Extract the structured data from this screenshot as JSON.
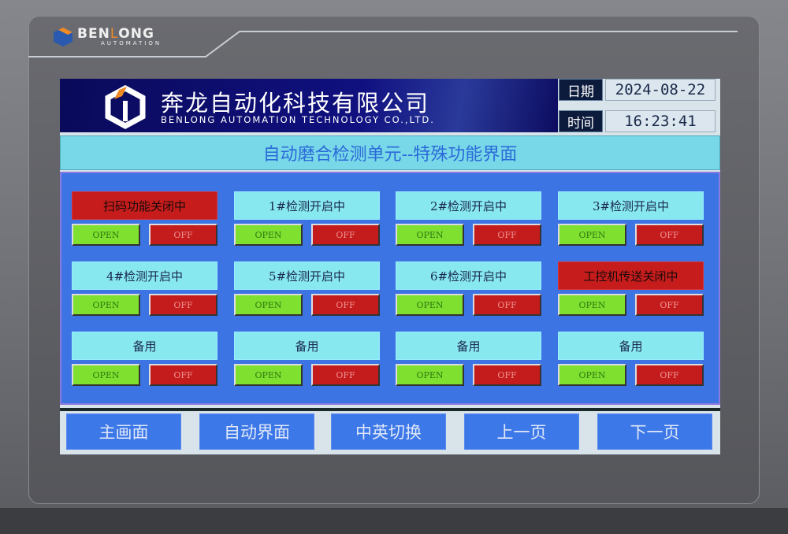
{
  "brand": {
    "name_a": "BEN",
    "name_b": "L",
    "name_c": "ONG",
    "sub": "AUTOMATION"
  },
  "header": {
    "company_cn": "奔龙自动化科技有限公司",
    "company_en": "BENLONG AUTOMATION TECHNOLOGY CO.,LTD."
  },
  "datetime": {
    "date_label": "日期",
    "date": "2024-08-22",
    "time_label": "时间",
    "time": "16:23:41"
  },
  "title": "自动磨合检测单元--特殊功能界面",
  "colors": {
    "on": "#80e030",
    "off": "#c41c1c",
    "label_active": "#88e8f0",
    "label_closed": "#c61c1c"
  },
  "controls": [
    {
      "label": "扫码功能关闭中",
      "state": "closed",
      "open": "OPEN",
      "off": "OFF"
    },
    {
      "label": "1#检测开启中",
      "state": "active",
      "open": "OPEN",
      "off": "OFF"
    },
    {
      "label": "2#检测开启中",
      "state": "active",
      "open": "OPEN",
      "off": "OFF"
    },
    {
      "label": "3#检测开启中",
      "state": "active",
      "open": "OPEN",
      "off": "OFF"
    },
    {
      "label": "4#检测开启中",
      "state": "active",
      "open": "OPEN",
      "off": "OFF"
    },
    {
      "label": "5#检测开启中",
      "state": "active",
      "open": "OPEN",
      "off": "OFF"
    },
    {
      "label": "6#检测开启中",
      "state": "active",
      "open": "OPEN",
      "off": "OFF"
    },
    {
      "label": "工控机传送关闭中",
      "state": "closed",
      "open": "OPEN",
      "off": "OFF"
    },
    {
      "label": "备用",
      "state": "active",
      "open": "OPEN",
      "off": "OFF"
    },
    {
      "label": "备用",
      "state": "active",
      "open": "OPEN",
      "off": "OFF"
    },
    {
      "label": "备用",
      "state": "active",
      "open": "OPEN",
      "off": "OFF"
    },
    {
      "label": "备用",
      "state": "active",
      "open": "OPEN",
      "off": "OFF"
    }
  ],
  "nav": [
    "主画面",
    "自动界面",
    "中英切换",
    "上一页",
    "下一页"
  ]
}
